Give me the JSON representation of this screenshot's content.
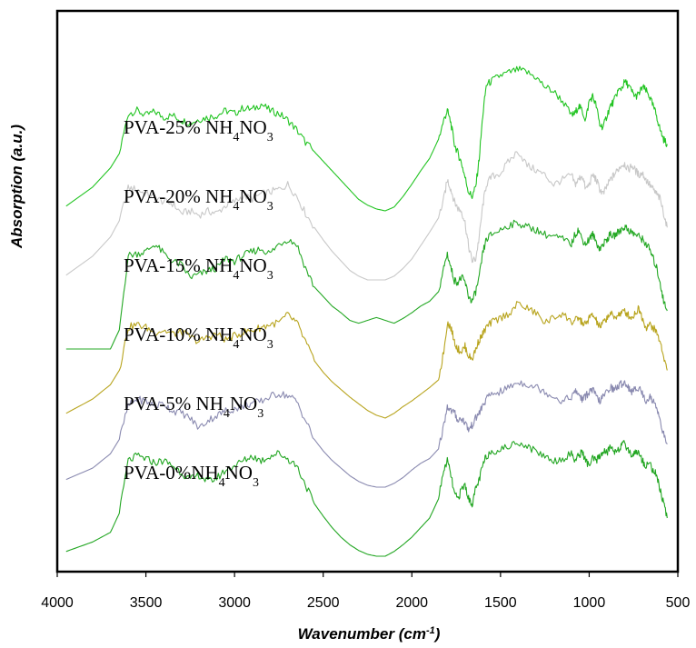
{
  "chart_data": {
    "type": "line",
    "title": "",
    "xlabel": "Wavenumber (cm-1)",
    "xlabel_parts": {
      "base": "Wavenumber (cm",
      "sup": "-1",
      "tail": ")"
    },
    "ylabel": "Absorption (a.u.)",
    "xlim": [
      4000,
      500
    ],
    "x_reversed": true,
    "y_ticks_shown": false,
    "grid": false,
    "x_ticks": [
      4000,
      3500,
      3000,
      2500,
      2000,
      1500,
      1000,
      500
    ],
    "x_tick_labels": [
      "4000",
      "3500",
      "3000",
      "2500",
      "2000",
      "1500",
      "1000",
      "500"
    ],
    "series": [
      {
        "name": "PVA-25% NH4NO3",
        "label_parts": {
          "prefix": "PVA-25% NH",
          "s1": "4",
          "mid": "NO",
          "s2": "3"
        },
        "color": "#22c422",
        "offset": 5,
        "x": [
          3950,
          3800,
          3700,
          3650,
          3600,
          3550,
          3500,
          3450,
          3400,
          3350,
          3300,
          3250,
          3200,
          3150,
          3100,
          3050,
          3000,
          2950,
          2900,
          2850,
          2800,
          2750,
          2700,
          2650,
          2600,
          2550,
          2500,
          2450,
          2400,
          2350,
          2300,
          2250,
          2200,
          2150,
          2100,
          2050,
          2000,
          1950,
          1900,
          1850,
          1820,
          1800,
          1780,
          1760,
          1740,
          1720,
          1700,
          1680,
          1660,
          1640,
          1620,
          1600,
          1580,
          1550,
          1500,
          1450,
          1400,
          1350,
          1300,
          1250,
          1200,
          1150,
          1100,
          1080,
          1060,
          1040,
          1020,
          1000,
          980,
          960,
          940,
          920,
          900,
          880,
          860,
          840,
          820,
          800,
          780,
          760,
          740,
          720,
          700,
          680,
          660,
          640,
          620,
          600,
          580,
          560
        ],
        "y": [
          0.05,
          0.25,
          0.45,
          0.6,
          1.02,
          1.05,
          1.0,
          1.04,
          0.98,
          1.0,
          0.95,
          0.92,
          0.96,
          0.98,
          1.0,
          1.05,
          1.02,
          1.08,
          1.06,
          1.12,
          1.05,
          1.02,
          0.95,
          0.85,
          0.72,
          0.62,
          0.52,
          0.42,
          0.32,
          0.22,
          0.12,
          0.06,
          0.02,
          0.0,
          0.04,
          0.15,
          0.28,
          0.42,
          0.55,
          0.75,
          0.95,
          1.05,
          0.92,
          0.7,
          0.6,
          0.5,
          0.35,
          0.2,
          0.15,
          0.25,
          0.55,
          1.0,
          1.32,
          1.36,
          1.42,
          1.45,
          1.48,
          1.45,
          1.4,
          1.3,
          1.25,
          1.15,
          1.0,
          1.02,
          1.1,
          1.05,
          0.95,
          1.15,
          1.2,
          1.1,
          0.9,
          0.88,
          1.0,
          1.1,
          1.15,
          1.25,
          1.28,
          1.35,
          1.32,
          1.25,
          1.2,
          1.22,
          1.3,
          1.26,
          1.2,
          1.1,
          1.0,
          0.85,
          0.75,
          0.7
        ]
      },
      {
        "name": "PVA-20% NH4NO3",
        "label_parts": {
          "prefix": "PVA-20% NH",
          "s1": "4",
          "mid": "NO",
          "s2": "3"
        },
        "color": "#c8c8c8",
        "offset": 4,
        "x": [
          3950,
          3800,
          3700,
          3650,
          3600,
          3550,
          3500,
          3450,
          3400,
          3350,
          3300,
          3250,
          3200,
          3150,
          3100,
          3050,
          3000,
          2950,
          2900,
          2850,
          2800,
          2750,
          2700,
          2650,
          2600,
          2550,
          2500,
          2450,
          2400,
          2350,
          2300,
          2250,
          2200,
          2150,
          2100,
          2050,
          2000,
          1950,
          1900,
          1850,
          1820,
          1800,
          1780,
          1760,
          1740,
          1720,
          1700,
          1680,
          1660,
          1640,
          1620,
          1600,
          1580,
          1550,
          1500,
          1450,
          1400,
          1350,
          1300,
          1250,
          1200,
          1150,
          1100,
          1080,
          1060,
          1040,
          1020,
          1000,
          980,
          960,
          940,
          920,
          900,
          880,
          860,
          840,
          820,
          800,
          780,
          760,
          740,
          720,
          700,
          680,
          660,
          640,
          620,
          600,
          580,
          560
        ],
        "y": [
          0.05,
          0.25,
          0.45,
          0.62,
          0.96,
          0.95,
          0.9,
          0.86,
          0.82,
          0.8,
          0.7,
          0.72,
          0.68,
          0.72,
          0.7,
          0.78,
          0.82,
          0.88,
          0.85,
          0.9,
          0.92,
          0.95,
          1.0,
          0.88,
          0.7,
          0.55,
          0.42,
          0.3,
          0.2,
          0.1,
          0.04,
          0.0,
          0.0,
          0.0,
          0.04,
          0.12,
          0.22,
          0.36,
          0.5,
          0.65,
          0.85,
          1.05,
          0.95,
          0.82,
          0.75,
          0.72,
          0.6,
          0.35,
          0.2,
          0.22,
          0.45,
          0.78,
          1.0,
          1.08,
          1.12,
          1.25,
          1.35,
          1.2,
          1.15,
          1.1,
          1.0,
          1.05,
          1.1,
          1.0,
          1.05,
          1.1,
          0.95,
          1.0,
          1.1,
          1.05,
          0.95,
          0.9,
          0.98,
          1.05,
          1.1,
          1.15,
          1.2,
          1.22,
          1.15,
          1.2,
          1.15,
          1.1,
          1.12,
          1.05,
          1.0,
          0.95,
          0.9,
          0.85,
          0.7,
          0.55
        ]
      },
      {
        "name": "PVA-15% NH4NO3",
        "label_parts": {
          "prefix": "PVA-15% NH",
          "s1": "4",
          "mid": "NO",
          "s2": "3"
        },
        "color": "#24a824",
        "offset": 3,
        "x": [
          3950,
          3800,
          3700,
          3650,
          3600,
          3550,
          3500,
          3450,
          3400,
          3350,
          3300,
          3250,
          3200,
          3150,
          3100,
          3050,
          3000,
          2950,
          2900,
          2850,
          2800,
          2750,
          2700,
          2650,
          2600,
          2550,
          2500,
          2450,
          2400,
          2350,
          2300,
          2250,
          2200,
          2150,
          2100,
          2050,
          2000,
          1950,
          1900,
          1850,
          1820,
          1800,
          1780,
          1760,
          1740,
          1720,
          1700,
          1680,
          1660,
          1640,
          1620,
          1600,
          1580,
          1550,
          1500,
          1450,
          1400,
          1350,
          1300,
          1250,
          1200,
          1150,
          1100,
          1080,
          1060,
          1040,
          1020,
          1000,
          980,
          960,
          940,
          920,
          900,
          880,
          860,
          840,
          820,
          800,
          780,
          760,
          740,
          720,
          700,
          680,
          660,
          640,
          620,
          600,
          580,
          560
        ],
        "y": [
          0.0,
          0.0,
          0.0,
          0.2,
          0.98,
          1.0,
          1.02,
          1.1,
          1.0,
          0.92,
          0.88,
          0.75,
          0.78,
          0.82,
          0.85,
          0.95,
          0.92,
          0.98,
          1.02,
          1.05,
          1.0,
          1.1,
          1.15,
          1.1,
          0.85,
          0.65,
          0.55,
          0.45,
          0.38,
          0.3,
          0.27,
          0.3,
          0.33,
          0.3,
          0.27,
          0.32,
          0.38,
          0.45,
          0.5,
          0.6,
          0.85,
          1.0,
          0.85,
          0.72,
          0.7,
          0.75,
          0.7,
          0.55,
          0.5,
          0.6,
          0.75,
          1.0,
          1.15,
          1.2,
          1.25,
          1.3,
          1.32,
          1.28,
          1.25,
          1.2,
          1.18,
          1.15,
          1.1,
          1.2,
          1.25,
          1.15,
          1.1,
          1.15,
          1.2,
          1.12,
          1.05,
          1.1,
          1.15,
          1.2,
          1.18,
          1.22,
          1.25,
          1.28,
          1.25,
          1.22,
          1.2,
          1.18,
          1.15,
          1.1,
          1.05,
          0.95,
          0.85,
          0.7,
          0.5,
          0.4
        ]
      },
      {
        "name": "PVA-10% NH4NO3",
        "label_parts": {
          "prefix": "PVA-10% NH",
          "s1": "4",
          "mid": "NO",
          "s2": "3"
        },
        "color": "#b8a41e",
        "offset": 2,
        "x": [
          3950,
          3800,
          3700,
          3650,
          3600,
          3550,
          3500,
          3450,
          3400,
          3350,
          3300,
          3250,
          3200,
          3150,
          3100,
          3050,
          3000,
          2950,
          2900,
          2850,
          2800,
          2750,
          2700,
          2650,
          2600,
          2550,
          2500,
          2450,
          2400,
          2350,
          2300,
          2250,
          2200,
          2150,
          2100,
          2050,
          2000,
          1950,
          1900,
          1850,
          1820,
          1800,
          1780,
          1760,
          1740,
          1720,
          1700,
          1680,
          1660,
          1640,
          1620,
          1600,
          1580,
          1550,
          1500,
          1450,
          1400,
          1350,
          1300,
          1250,
          1200,
          1150,
          1100,
          1080,
          1060,
          1040,
          1020,
          1000,
          980,
          960,
          940,
          920,
          900,
          880,
          860,
          840,
          820,
          800,
          780,
          760,
          740,
          720,
          700,
          680,
          660,
          640,
          620,
          600,
          580,
          560
        ],
        "y": [
          0.05,
          0.2,
          0.35,
          0.5,
          0.95,
          0.98,
          0.95,
          0.9,
          0.92,
          0.88,
          0.9,
          0.85,
          0.8,
          0.85,
          0.88,
          0.82,
          0.86,
          0.9,
          0.92,
          0.95,
          0.98,
          1.0,
          1.08,
          1.0,
          0.8,
          0.6,
          0.48,
          0.38,
          0.3,
          0.22,
          0.15,
          0.08,
          0.03,
          0.0,
          0.05,
          0.12,
          0.18,
          0.25,
          0.32,
          0.4,
          0.7,
          1.0,
          0.95,
          0.8,
          0.72,
          0.7,
          0.75,
          0.65,
          0.62,
          0.72,
          0.82,
          0.88,
          0.95,
          1.0,
          1.05,
          1.1,
          1.2,
          1.15,
          1.1,
          1.0,
          1.05,
          1.1,
          1.0,
          1.02,
          1.05,
          1.0,
          0.98,
          1.05,
          1.08,
          1.02,
          0.95,
          1.0,
          1.05,
          1.1,
          1.05,
          1.08,
          1.1,
          1.12,
          1.08,
          1.05,
          1.1,
          1.15,
          1.05,
          0.95,
          0.98,
          0.95,
          0.9,
          0.8,
          0.65,
          0.5
        ]
      },
      {
        "name": "PVA-5% NH4NO3",
        "label_parts": {
          "prefix": "PVA-5% NH",
          "s1": "4",
          "mid": "NO",
          "s2": "3"
        },
        "color": "#8a8ab0",
        "offset": 1,
        "x": [
          3950,
          3800,
          3700,
          3650,
          3600,
          3550,
          3500,
          3450,
          3400,
          3350,
          3300,
          3250,
          3200,
          3150,
          3100,
          3050,
          3000,
          2950,
          2900,
          2850,
          2800,
          2750,
          2700,
          2650,
          2600,
          2550,
          2500,
          2450,
          2400,
          2350,
          2300,
          2250,
          2200,
          2150,
          2100,
          2050,
          2000,
          1950,
          1900,
          1850,
          1820,
          1800,
          1780,
          1760,
          1740,
          1720,
          1700,
          1680,
          1660,
          1640,
          1620,
          1600,
          1580,
          1550,
          1500,
          1450,
          1400,
          1350,
          1300,
          1250,
          1200,
          1150,
          1100,
          1080,
          1060,
          1040,
          1020,
          1000,
          980,
          960,
          940,
          920,
          900,
          880,
          860,
          840,
          820,
          800,
          780,
          760,
          740,
          720,
          700,
          680,
          660,
          640,
          620,
          600,
          580,
          560
        ],
        "y": [
          0.08,
          0.2,
          0.35,
          0.5,
          0.85,
          0.92,
          0.9,
          0.85,
          0.88,
          0.8,
          0.78,
          0.72,
          0.62,
          0.7,
          0.75,
          0.8,
          0.82,
          0.85,
          0.88,
          0.9,
          0.95,
          0.98,
          0.96,
          0.9,
          0.7,
          0.5,
          0.38,
          0.28,
          0.2,
          0.12,
          0.06,
          0.02,
          0.0,
          0.0,
          0.04,
          0.1,
          0.18,
          0.25,
          0.3,
          0.4,
          0.65,
          0.85,
          0.8,
          0.78,
          0.7,
          0.72,
          0.68,
          0.6,
          0.65,
          0.72,
          0.78,
          0.85,
          0.92,
          0.98,
          1.0,
          1.05,
          1.1,
          1.08,
          1.05,
          1.0,
          0.95,
          0.9,
          0.95,
          1.0,
          0.98,
          0.92,
          0.95,
          1.0,
          1.02,
          0.95,
          0.9,
          0.95,
          1.0,
          1.05,
          1.02,
          1.05,
          1.08,
          1.1,
          1.05,
          1.0,
          1.02,
          1.05,
          0.98,
          0.9,
          0.95,
          0.9,
          0.85,
          0.7,
          0.55,
          0.45
        ]
      },
      {
        "name": "PVA-0%NH4NO3",
        "label_parts": {
          "prefix": "PVA-0%NH",
          "s1": "4",
          "mid": "NO",
          "s2": "3"
        },
        "color": "#22a622",
        "offset": 0,
        "x": [
          3950,
          3800,
          3700,
          3650,
          3600,
          3550,
          3500,
          3450,
          3400,
          3350,
          3300,
          3250,
          3200,
          3150,
          3100,
          3050,
          3000,
          2950,
          2900,
          2850,
          2800,
          2750,
          2700,
          2650,
          2600,
          2550,
          2500,
          2450,
          2400,
          2350,
          2300,
          2250,
          2200,
          2150,
          2100,
          2050,
          2000,
          1950,
          1900,
          1850,
          1820,
          1800,
          1780,
          1760,
          1740,
          1720,
          1700,
          1680,
          1660,
          1640,
          1620,
          1600,
          1580,
          1550,
          1500,
          1450,
          1400,
          1350,
          1300,
          1250,
          1200,
          1150,
          1100,
          1080,
          1060,
          1040,
          1020,
          1000,
          980,
          960,
          940,
          920,
          900,
          880,
          860,
          840,
          820,
          800,
          780,
          760,
          740,
          720,
          700,
          680,
          660,
          640,
          620,
          600,
          580,
          560
        ],
        "y": [
          0.05,
          0.15,
          0.25,
          0.45,
          1.0,
          1.05,
          1.02,
          0.98,
          1.0,
          0.95,
          0.88,
          0.8,
          0.85,
          0.78,
          0.82,
          0.9,
          0.95,
          1.0,
          1.05,
          1.0,
          1.05,
          1.08,
          1.02,
          0.95,
          0.75,
          0.55,
          0.42,
          0.3,
          0.2,
          0.12,
          0.06,
          0.02,
          0.0,
          0.0,
          0.05,
          0.12,
          0.2,
          0.3,
          0.4,
          0.6,
          0.9,
          1.0,
          0.85,
          0.65,
          0.6,
          0.7,
          0.75,
          0.6,
          0.55,
          0.7,
          0.8,
          0.95,
          1.05,
          1.1,
          1.12,
          1.15,
          1.2,
          1.15,
          1.1,
          1.05,
          1.0,
          1.02,
          1.08,
          1.0,
          1.05,
          1.1,
          1.0,
          0.95,
          1.02,
          1.0,
          1.05,
          1.1,
          1.08,
          1.15,
          1.1,
          1.12,
          1.15,
          1.18,
          1.12,
          1.05,
          1.1,
          1.08,
          1.0,
          0.95,
          0.98,
          0.9,
          0.85,
          0.7,
          0.55,
          0.4
        ]
      }
    ]
  }
}
